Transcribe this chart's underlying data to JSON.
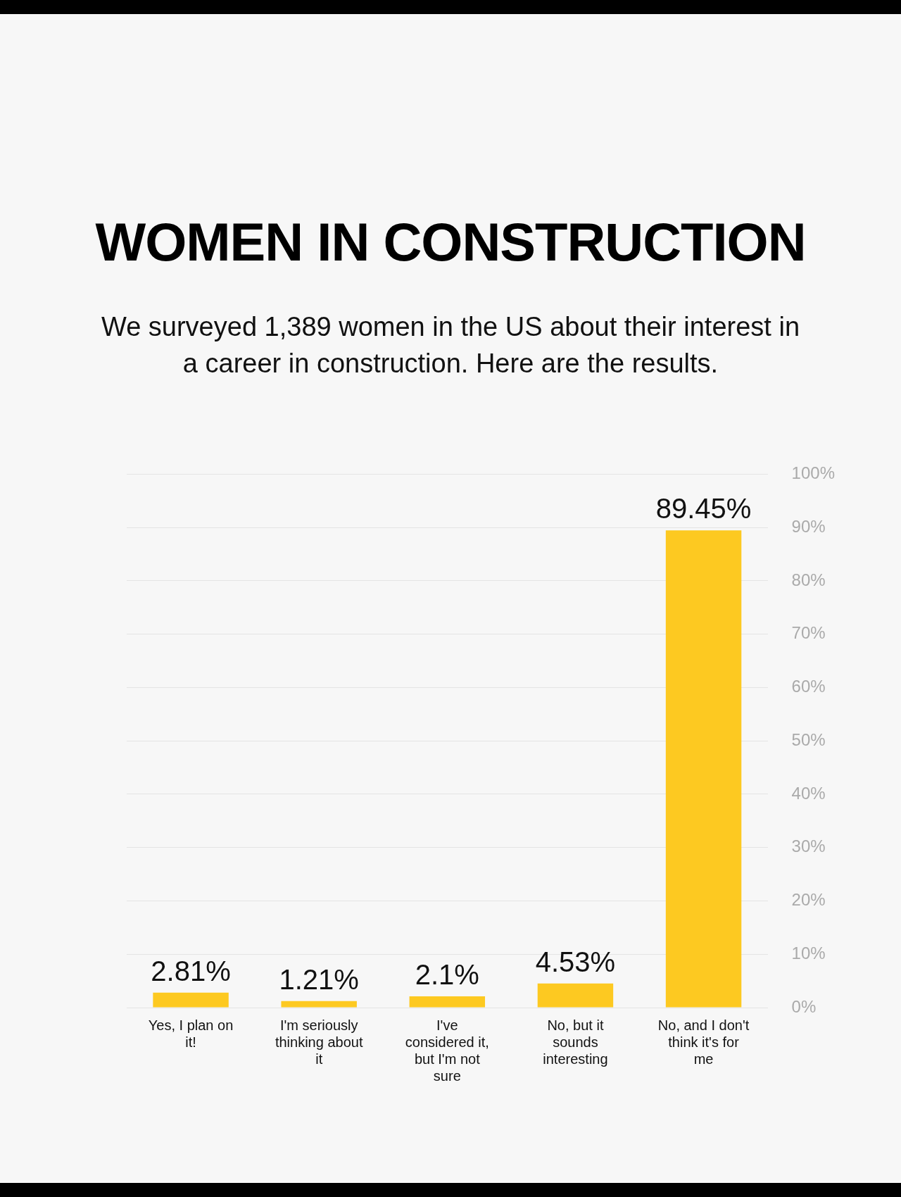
{
  "chart_data": {
    "type": "bar",
    "title": "WOMEN IN CONSTRUCTION",
    "subtitle": "We surveyed 1,389 women in the US about their interest in a career in construction. Here are the results.",
    "categories": [
      "Yes, I plan on it!",
      "I'm seriously thinking about it",
      "I've considered it, but I'm not sure",
      "No, but it sounds interesting",
      "No, and I don't think it's for me"
    ],
    "values": [
      2.81,
      1.21,
      2.1,
      4.53,
      89.45
    ],
    "value_labels": [
      "2.81%",
      "1.21%",
      "2.1%",
      "4.53%",
      "89.45%"
    ],
    "color": "#fdc921",
    "ylim": [
      0,
      100
    ],
    "yticks": [
      {
        "value": 0,
        "label": "0%"
      },
      {
        "value": 10,
        "label": "10%"
      },
      {
        "value": 20,
        "label": "20%"
      },
      {
        "value": 30,
        "label": "30%"
      },
      {
        "value": 40,
        "label": "40%"
      },
      {
        "value": 50,
        "label": "50%"
      },
      {
        "value": 60,
        "label": "60%"
      },
      {
        "value": 70,
        "label": "70%"
      },
      {
        "value": 80,
        "label": "80%"
      },
      {
        "value": 90,
        "label": "90%"
      },
      {
        "value": 100,
        "label": "100%"
      }
    ],
    "grid": "y",
    "legend": false
  }
}
